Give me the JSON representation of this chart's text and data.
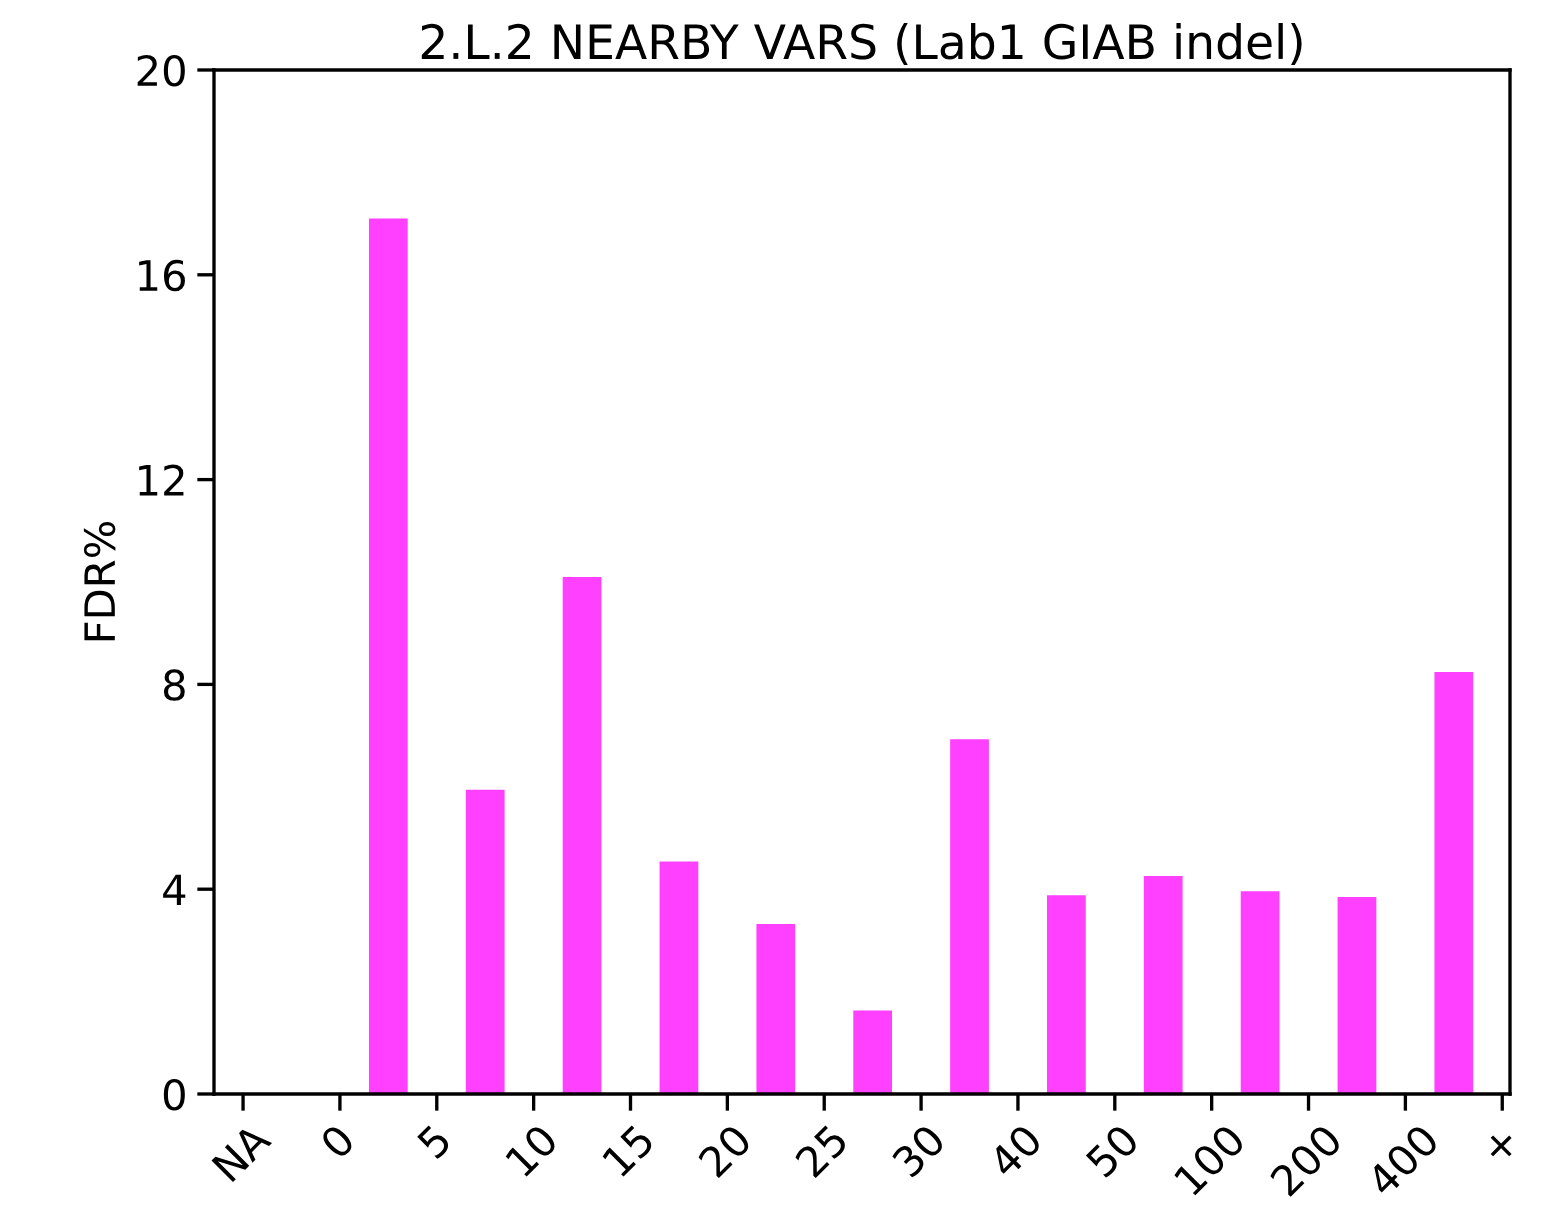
{
  "chart_data": {
    "type": "bar",
    "title": "2.L.2 NEARBY VARS (Lab1 GIAB indel)",
    "ylabel": "FDR%",
    "categories": [
      "NA",
      "0",
      "5",
      "10",
      "15",
      "20",
      "25",
      "30",
      "40",
      "50",
      "100",
      "200",
      "400",
      "+"
    ],
    "values": [
      null,
      17.1,
      5.94,
      10.1,
      4.54,
      3.32,
      1.63,
      6.93,
      3.88,
      4.26,
      3.96,
      3.85,
      8.24,
      null
    ],
    "color": "#ff40ff",
    "ylim": [
      0,
      20
    ],
    "yticks": [
      0,
      4,
      8,
      12,
      16,
      20
    ],
    "grid": false,
    "legend": false
  }
}
